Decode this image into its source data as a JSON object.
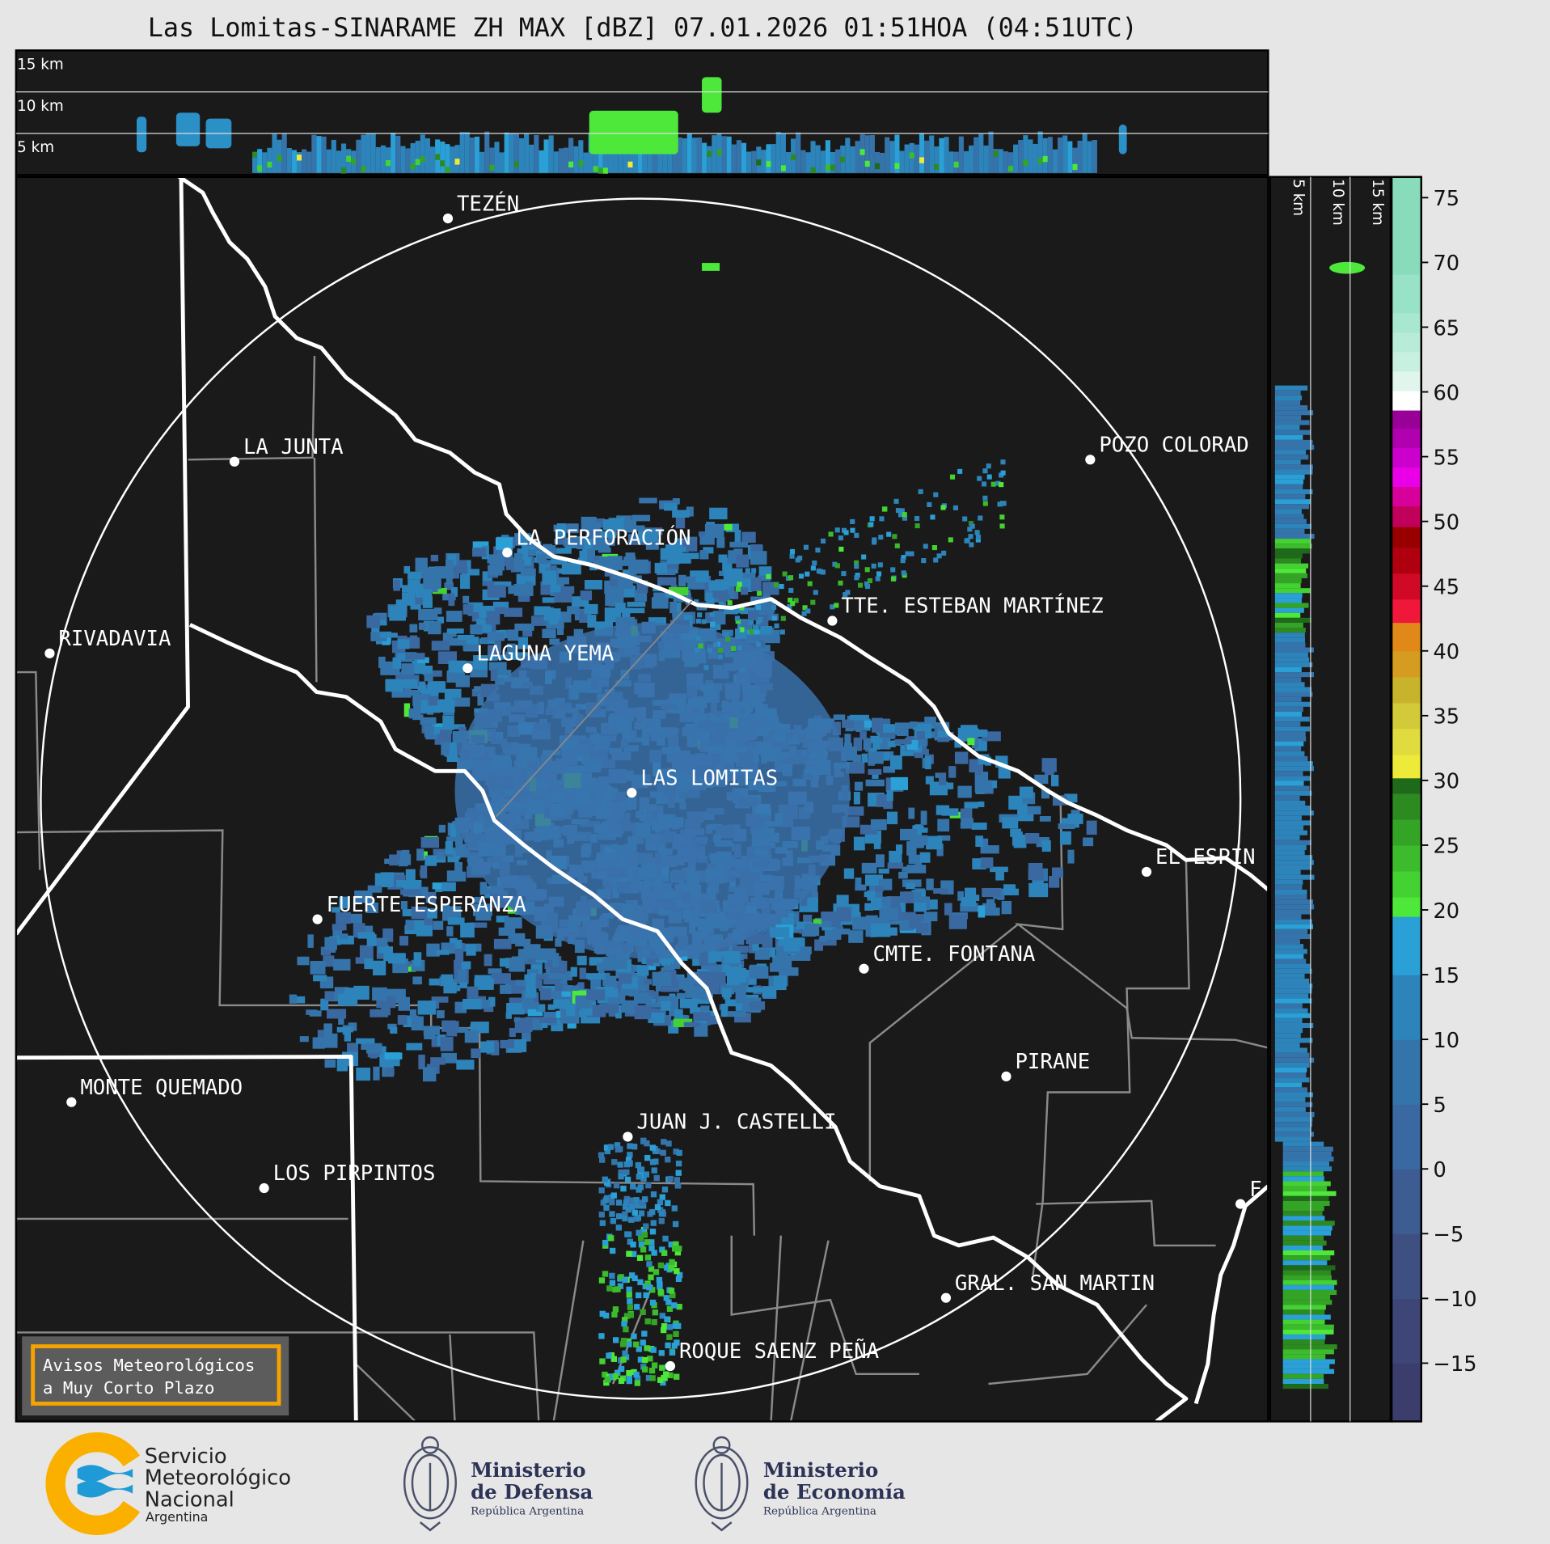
{
  "title": "Las Lomitas-SINARAME ZH MAX [dBZ] 07.01.2026 01:51HOA (04:51UTC)",
  "top_panel": {
    "altitude_labels": [
      "15 km",
      "10 km",
      "5 km"
    ]
  },
  "side_panel": {
    "altitude_labels": [
      "5 km",
      "10 km",
      "15 km"
    ]
  },
  "map": {
    "cities": [
      "TEZÉN",
      "LA JUNTA",
      "POZO COLORAD",
      "LA PERFORACIÓN",
      "RIVADAVIA",
      "TTE. ESTEBAN MARTÍNEZ",
      "LAGUNA YEMA",
      "LAS LOMITAS",
      "EL ESPIN",
      "FUERTE ESPERANZA",
      "CMTE. FONTANA",
      "PIRANE",
      "MONTE QUEMADO",
      "JUAN J. CASTELLI",
      "LOS PIRPINTOS",
      "GRAL. SAN MARTIN",
      "ROQUE SAENZ PEÑA",
      "F"
    ]
  },
  "colorbar": {
    "unit": "dBZ",
    "range": [
      -19.5,
      76.6
    ],
    "tick_values": [
      75,
      70,
      65,
      60,
      55,
      50,
      45,
      40,
      35,
      30,
      25,
      20,
      15,
      10,
      5,
      0,
      -5,
      -10,
      -15
    ],
    "tick_labels": [
      "75",
      "70",
      "65",
      "60",
      "55",
      "50",
      "45",
      "40",
      "35",
      "30",
      "25",
      "20",
      "15",
      "10",
      "5",
      "0",
      "−5",
      "−10",
      "−15"
    ],
    "bands": [
      {
        "from": -20,
        "to": -15,
        "color": "#3b3e6c"
      },
      {
        "from": -15,
        "to": -10,
        "color": "#3d4676"
      },
      {
        "from": -10,
        "to": -5,
        "color": "#3e5082"
      },
      {
        "from": -5,
        "to": 0,
        "color": "#3c5c92"
      },
      {
        "from": 0,
        "to": 5,
        "color": "#3a68a0"
      },
      {
        "from": 5,
        "to": 10,
        "color": "#3574ab"
      },
      {
        "from": 10,
        "to": 15,
        "color": "#2d84ba"
      },
      {
        "from": 15,
        "to": 19.5,
        "color": "#2aa0d6"
      },
      {
        "from": 19.5,
        "to": 21,
        "color": "#4ee83a"
      },
      {
        "from": 21,
        "to": 23,
        "color": "#44d232"
      },
      {
        "from": 23,
        "to": 25,
        "color": "#3cbc2c"
      },
      {
        "from": 25,
        "to": 27,
        "color": "#34a426"
      },
      {
        "from": 27,
        "to": 29,
        "color": "#2c8a20"
      },
      {
        "from": 29,
        "to": 30.2,
        "color": "#1f6a1a"
      },
      {
        "from": 30.2,
        "to": 32,
        "color": "#eeea3a"
      },
      {
        "from": 32,
        "to": 34,
        "color": "#e0dc40"
      },
      {
        "from": 34,
        "to": 36,
        "color": "#d2ca38"
      },
      {
        "from": 36,
        "to": 38,
        "color": "#c8b42c"
      },
      {
        "from": 38,
        "to": 40,
        "color": "#d69c20"
      },
      {
        "from": 40,
        "to": 42.2,
        "color": "#e08818"
      },
      {
        "from": 42.2,
        "to": 44,
        "color": "#f0183a"
      },
      {
        "from": 44,
        "to": 46,
        "color": "#d00a26"
      },
      {
        "from": 46,
        "to": 48,
        "color": "#b00010"
      },
      {
        "from": 48,
        "to": 49.6,
        "color": "#980000"
      },
      {
        "from": 49.6,
        "to": 51.2,
        "color": "#c0005a"
      },
      {
        "from": 51.2,
        "to": 52.7,
        "color": "#d8009a"
      },
      {
        "from": 52.7,
        "to": 54.2,
        "color": "#ea00e6"
      },
      {
        "from": 54.2,
        "to": 55.7,
        "color": "#cc00cc"
      },
      {
        "from": 55.7,
        "to": 57.2,
        "color": "#b000b0"
      },
      {
        "from": 57.2,
        "to": 58.6,
        "color": "#980098"
      },
      {
        "from": 58.6,
        "to": 60.1,
        "color": "#ffffff"
      },
      {
        "from": 60.1,
        "to": 61.6,
        "color": "#e0f5ec"
      },
      {
        "from": 61.6,
        "to": 63.1,
        "color": "#c8f0e0"
      },
      {
        "from": 63.1,
        "to": 64.6,
        "color": "#b8ecd8"
      },
      {
        "from": 64.6,
        "to": 66.1,
        "color": "#a8e8d0"
      },
      {
        "from": 66.1,
        "to": 69.1,
        "color": "#98e2c8"
      },
      {
        "from": 69.1,
        "to": 77,
        "color": "#88dcbc"
      }
    ]
  },
  "notice": {
    "line1": "Avisos Meteorológicos",
    "line2": "a Muy Corto Plazo",
    "border_color": "#f5a300"
  },
  "logos": {
    "smn": {
      "line1": "Servicio",
      "line2": "Meteorológico",
      "line3": "Nacional",
      "line4": "Argentina",
      "orange": "#fbb000",
      "blue": "#1e9ad6"
    },
    "defensa": {
      "line1": "Ministerio",
      "line2": "de Defensa",
      "line3": "República Argentina"
    },
    "economia": {
      "line1": "Ministerio",
      "line2": "de Economía",
      "line3": "República Argentina"
    }
  },
  "colors": {
    "background": "#e6e6e6",
    "panel": "#1a1a1a",
    "echo": "#3a7ab8"
  }
}
